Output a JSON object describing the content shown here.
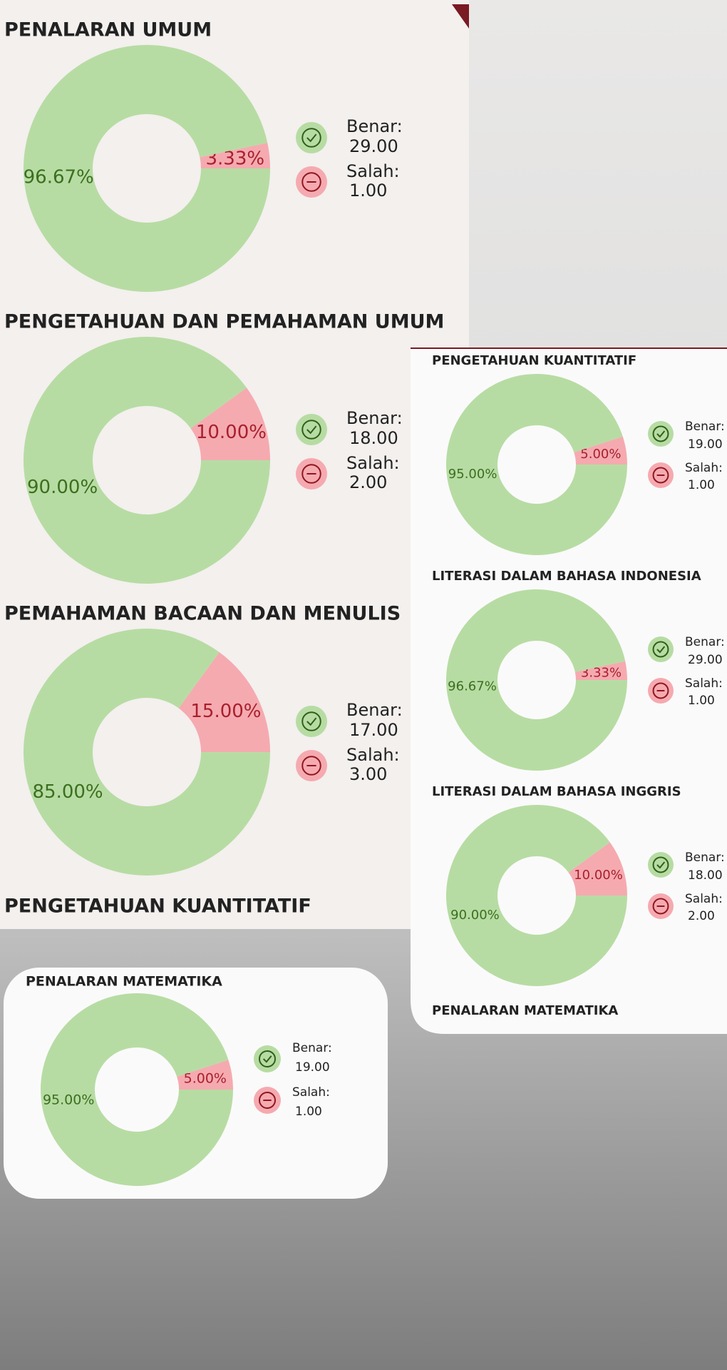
{
  "chart_data": [
    {
      "type": "pie",
      "title": "PENALARAN UMUM",
      "values": [
        96.67,
        3.33
      ],
      "value_labels": [
        "96.67%",
        "3.33%"
      ],
      "colors": [
        "#b7dca3",
        "#f5aab0"
      ],
      "legend": [
        {
          "label": "Benar:",
          "count": "29.00"
        },
        {
          "label": "Salah:",
          "count": "1.00"
        }
      ]
    },
    {
      "type": "pie",
      "title": "PENGETAHUAN DAN PEMAHAMAN UMUM",
      "values": [
        90.0,
        10.0
      ],
      "value_labels": [
        "90.00%",
        "10.00%"
      ],
      "colors": [
        "#b7dca3",
        "#f5aab0"
      ],
      "legend": [
        {
          "label": "Benar:",
          "count": "18.00"
        },
        {
          "label": "Salah:",
          "count": "2.00"
        }
      ]
    },
    {
      "type": "pie",
      "title": "PEMAHAMAN BACAAN DAN MENULIS",
      "values": [
        85.0,
        15.0
      ],
      "value_labels": [
        "85.00%",
        "15.00%"
      ],
      "colors": [
        "#b7dca3",
        "#f5aab0"
      ],
      "legend": [
        {
          "label": "Benar:",
          "count": "17.00"
        },
        {
          "label": "Salah:",
          "count": "3.00"
        }
      ]
    },
    {
      "type": "pie",
      "title": "PENGETAHUAN KUANTITATIF",
      "values": [
        95.0,
        5.0
      ],
      "value_labels": [
        "95.00%",
        "5.00%"
      ],
      "colors": [
        "#b7dca3",
        "#f5aab0"
      ],
      "legend": [
        {
          "label": "Benar:",
          "count": "19.00"
        },
        {
          "label": "Salah:",
          "count": "1.00"
        }
      ]
    },
    {
      "type": "pie",
      "title": "LITERASI DALAM BAHASA INDONESIA",
      "values": [
        96.67,
        3.33
      ],
      "value_labels": [
        "96.67%",
        "3.33%"
      ],
      "colors": [
        "#b7dca3",
        "#f5aab0"
      ],
      "legend": [
        {
          "label": "Benar:",
          "count": "29.00"
        },
        {
          "label": "Salah:",
          "count": "1.00"
        }
      ]
    },
    {
      "type": "pie",
      "title": "LITERASI DALAM BAHASA INGGRIS",
      "values": [
        90.0,
        10.0
      ],
      "value_labels": [
        "90.00%",
        "10.00%"
      ],
      "colors": [
        "#b7dca3",
        "#f5aab0"
      ],
      "legend": [
        {
          "label": "Benar:",
          "count": "18.00"
        },
        {
          "label": "Salah:",
          "count": "2.00"
        }
      ]
    },
    {
      "type": "pie",
      "title": "PENALARAN MATEMATIKA",
      "values": [
        95.0,
        5.0
      ],
      "value_labels": [
        "95.00%",
        "5.00%"
      ],
      "colors": [
        "#b7dca3",
        "#f5aab0"
      ],
      "legend": [
        {
          "label": "Benar:",
          "count": "19.00"
        },
        {
          "label": "Salah:",
          "count": "1.00"
        }
      ]
    }
  ],
  "cut_titles": [
    "PENGETAHUAN KUANTITATIF",
    "PENALARAN MATEMATIKA"
  ]
}
